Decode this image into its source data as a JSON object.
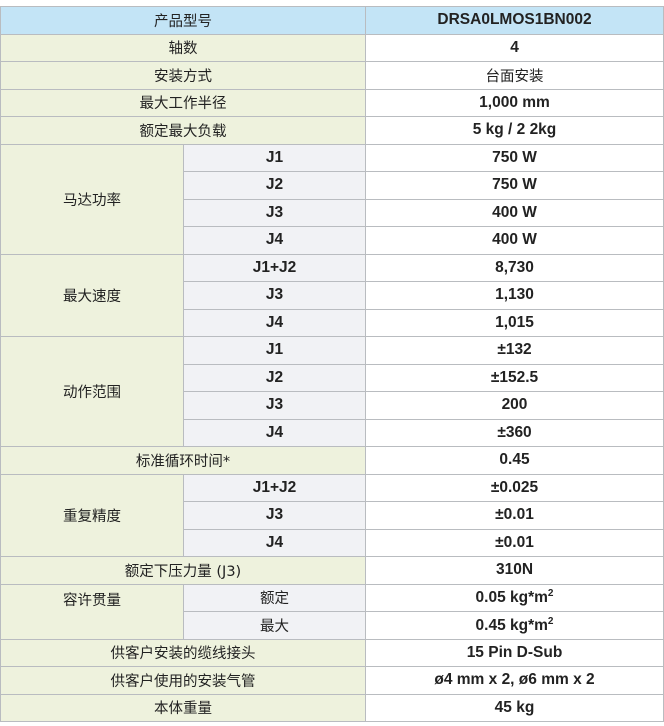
{
  "header": {
    "label": "产品型号",
    "value": "DRSA0LMOS1BN002"
  },
  "axes": {
    "label": "轴数",
    "value": "4"
  },
  "mount": {
    "label": "安装方式",
    "value": "台面安装"
  },
  "reach": {
    "label": "最大工作半径",
    "value": "1,000 mm"
  },
  "payload": {
    "label": "额定最大负载",
    "value": "5 kg / 2 2kg"
  },
  "motor": {
    "label": "马达功率",
    "rows": [
      {
        "sub": "J1",
        "value": "750 W"
      },
      {
        "sub": "J2",
        "value": "750 W"
      },
      {
        "sub": "J3",
        "value": "400 W"
      },
      {
        "sub": "J4",
        "value": "400 W"
      }
    ]
  },
  "speed": {
    "label": "最大速度",
    "rows": [
      {
        "sub": "J1+J2",
        "value": "8,730"
      },
      {
        "sub": "J3",
        "value": "1,130"
      },
      {
        "sub": "J4",
        "value": "1,015"
      }
    ]
  },
  "range": {
    "label": "动作范围",
    "rows": [
      {
        "sub": "J1",
        "value": "±132"
      },
      {
        "sub": "J2",
        "value": "±152.5"
      },
      {
        "sub": "J3",
        "value": "200"
      },
      {
        "sub": "J4",
        "value": "±360"
      }
    ]
  },
  "cycle": {
    "label": "标准循环时间*",
    "value": "0.45"
  },
  "repeat": {
    "label": "重复精度",
    "rows": [
      {
        "sub": "J1+J2",
        "value": "±0.025"
      },
      {
        "sub": "J3",
        "value": "±0.01"
      },
      {
        "sub": "J4",
        "value": "±0.01"
      }
    ]
  },
  "force": {
    "label": "额定下压力量 (J3)",
    "value": "310N"
  },
  "inertia": {
    "label": "容许贯量",
    "rows": [
      {
        "sub": "额定",
        "value": "0.05 kg*m",
        "exp": "2"
      },
      {
        "sub": "最大",
        "value": "0.45 kg*m",
        "exp": "2"
      }
    ]
  },
  "cable": {
    "label": "供客户安装的缆线接头",
    "value": "15 Pin D-Sub"
  },
  "air": {
    "label": "供客户使用的安装气管",
    "value": "ø4 mm x 2, ø6 mm x 2"
  },
  "weight": {
    "label": "本体重量",
    "value": "45 kg"
  }
}
